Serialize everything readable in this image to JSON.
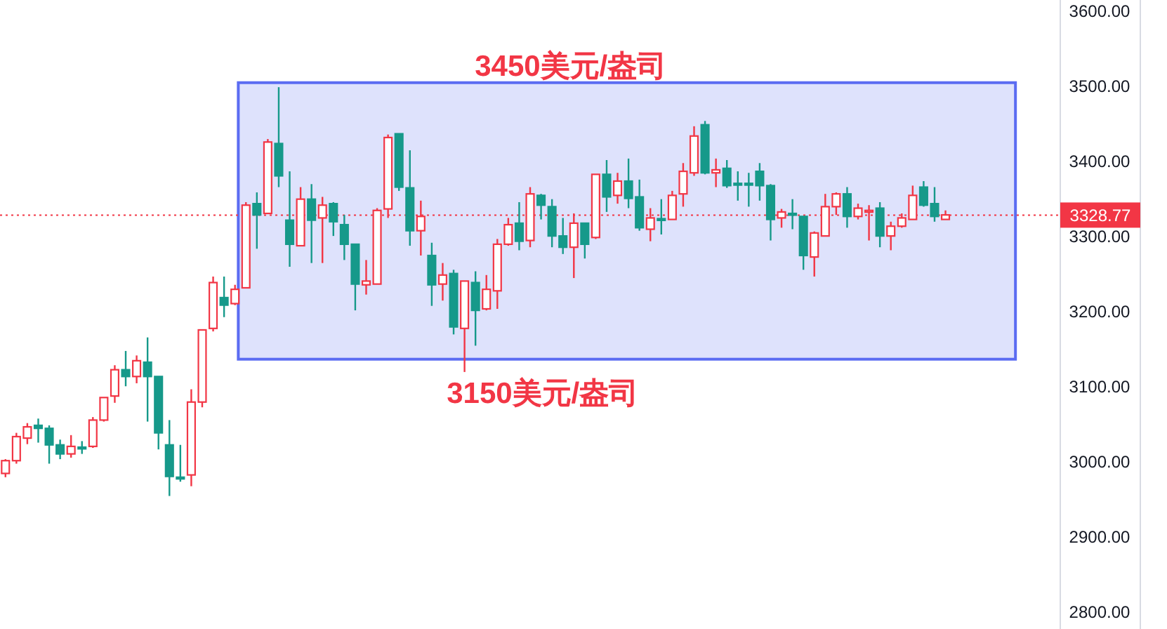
{
  "chart_data": {
    "type": "candlestick",
    "categories": [
      null,
      null,
      null,
      null,
      null,
      null,
      null,
      null,
      null,
      null,
      null,
      null,
      null,
      null,
      null,
      null,
      null,
      null,
      null,
      null,
      null,
      null,
      null,
      null,
      null,
      null,
      null,
      null,
      null,
      null,
      null,
      null,
      null,
      null,
      null,
      null,
      null,
      null,
      null,
      null,
      null,
      null,
      null,
      null,
      null,
      null,
      null,
      null,
      null,
      null,
      null,
      null,
      null,
      null,
      null,
      null,
      null,
      null,
      null,
      null,
      null,
      null,
      null,
      null,
      null,
      null,
      null,
      null,
      null,
      null,
      null,
      null,
      null,
      null,
      null,
      null,
      null,
      null,
      null,
      null,
      null,
      null,
      null,
      null,
      null,
      null,
      null,
      null,
      null,
      null,
      null,
      null,
      null,
      null,
      null,
      null,
      null
    ],
    "ohlc": [
      [
        2985,
        3004,
        2980,
        3002
      ],
      [
        3002,
        3039,
        2998,
        3034
      ],
      [
        3032,
        3052,
        3024,
        3047
      ],
      [
        3049,
        3058,
        3026,
        3045
      ],
      [
        3045,
        3049,
        2998,
        3023
      ],
      [
        3023,
        3030,
        3004,
        3011
      ],
      [
        3011,
        3036,
        3006,
        3021
      ],
      [
        3020,
        3028,
        3011,
        3018
      ],
      [
        3021,
        3060,
        3019,
        3056
      ],
      [
        3056,
        3086,
        3054,
        3086
      ],
      [
        3088,
        3129,
        3079,
        3123
      ],
      [
        3123,
        3148,
        3101,
        3114
      ],
      [
        3114,
        3142,
        3105,
        3135
      ],
      [
        3133,
        3166,
        3054,
        3114
      ],
      [
        3114,
        3114,
        3017,
        3039
      ],
      [
        3023,
        3056,
        2955,
        2981
      ],
      [
        2980,
        3023,
        2974,
        2979
      ],
      [
        2983,
        3097,
        2968,
        3080
      ],
      [
        3080,
        3176,
        3073,
        3176
      ],
      [
        3178,
        3247,
        3174,
        3239
      ],
      [
        3219,
        3247,
        3193,
        3209
      ],
      [
        3211,
        3236,
        3209,
        3230
      ],
      [
        3232,
        3346,
        3232,
        3342
      ],
      [
        3344,
        3359,
        3284,
        3329
      ],
      [
        3331,
        3430,
        3331,
        3426
      ],
      [
        3424,
        3499,
        3366,
        3381
      ],
      [
        3322,
        3387,
        3260,
        3290
      ],
      [
        3288,
        3366,
        3288,
        3350
      ],
      [
        3350,
        3370,
        3265,
        3322
      ],
      [
        3325,
        3353,
        3265,
        3342
      ],
      [
        3344,
        3346,
        3301,
        3320
      ],
      [
        3316,
        3329,
        3269,
        3290
      ],
      [
        3290,
        3290,
        3202,
        3237
      ],
      [
        3236,
        3269,
        3223,
        3241
      ],
      [
        3237,
        3338,
        3237,
        3335
      ],
      [
        3337,
        3436,
        3325,
        3432
      ],
      [
        3437,
        3437,
        3361,
        3366
      ],
      [
        3365,
        3415,
        3288,
        3308
      ],
      [
        3308,
        3348,
        3275,
        3327
      ],
      [
        3275,
        3292,
        3208,
        3236
      ],
      [
        3237,
        3265,
        3215,
        3249
      ],
      [
        3251,
        3256,
        3170,
        3180
      ],
      [
        3178,
        3241,
        3120,
        3241
      ],
      [
        3239,
        3254,
        3155,
        3202
      ],
      [
        3204,
        3249,
        3202,
        3230
      ],
      [
        3228,
        3297,
        3204,
        3290
      ],
      [
        3290,
        3325,
        3288,
        3316
      ],
      [
        3318,
        3346,
        3282,
        3294
      ],
      [
        3295,
        3366,
        3286,
        3357
      ],
      [
        3355,
        3357,
        3323,
        3342
      ],
      [
        3340,
        3350,
        3286,
        3301
      ],
      [
        3301,
        3325,
        3277,
        3286
      ],
      [
        3286,
        3331,
        3245,
        3318
      ],
      [
        3318,
        3318,
        3271,
        3290
      ],
      [
        3299,
        3383,
        3297,
        3383
      ],
      [
        3383,
        3402,
        3333,
        3353
      ],
      [
        3355,
        3385,
        3344,
        3374
      ],
      [
        3374,
        3404,
        3338,
        3351
      ],
      [
        3353,
        3376,
        3308,
        3312
      ],
      [
        3310,
        3338,
        3294,
        3325
      ],
      [
        3324,
        3350,
        3303,
        3322
      ],
      [
        3323,
        3361,
        3323,
        3355
      ],
      [
        3357,
        3398,
        3340,
        3387
      ],
      [
        3385,
        3447,
        3381,
        3434
      ],
      [
        3449,
        3454,
        3383,
        3385
      ],
      [
        3385,
        3404,
        3366,
        3389
      ],
      [
        3391,
        3402,
        3365,
        3368
      ],
      [
        3371,
        3387,
        3348,
        3370
      ],
      [
        3371,
        3385,
        3340,
        3369
      ],
      [
        3387,
        3398,
        3348,
        3368
      ],
      [
        3368,
        3370,
        3295,
        3323
      ],
      [
        3325,
        3337,
        3312,
        3333
      ],
      [
        3331,
        3350,
        3310,
        3329
      ],
      [
        3327,
        3327,
        3256,
        3275
      ],
      [
        3273,
        3307,
        3247,
        3305
      ],
      [
        3301,
        3357,
        3301,
        3340
      ],
      [
        3340,
        3359,
        3329,
        3357
      ],
      [
        3357,
        3366,
        3312,
        3327
      ],
      [
        3327,
        3344,
        3323,
        3338
      ],
      [
        3333,
        3342,
        3295,
        3335
      ],
      [
        3338,
        3346,
        3286,
        3301
      ],
      [
        3301,
        3320,
        3282,
        3314
      ],
      [
        3314,
        3331,
        3312,
        3325
      ],
      [
        3323,
        3368,
        3323,
        3355
      ],
      [
        3366,
        3374,
        3340,
        3342
      ],
      [
        3344,
        3366,
        3320,
        3327
      ],
      [
        3323,
        3335,
        3323,
        3329
      ],
      null,
      null,
      null,
      null,
      null,
      null,
      null,
      null,
      null,
      null
    ],
    "colors": [
      "#f23645",
      "#f23645",
      "#f23645",
      "#16998a",
      "#16998a",
      "#16998a",
      "#f23645",
      "#16998a",
      "#f23645",
      "#f23645",
      "#f23645",
      "#16998a",
      "#f23645",
      "#16998a",
      "#16998a",
      "#16998a",
      "#16998a",
      "#f23645",
      "#f23645",
      "#f23645",
      "#16998a",
      "#f23645",
      "#f23645",
      "#16998a",
      "#f23645",
      "#16998a",
      "#16998a",
      "#f23645",
      "#16998a",
      "#f23645",
      "#16998a",
      "#16998a",
      "#16998a",
      "#f23645",
      "#f23645",
      "#f23645",
      "#16998a",
      "#16998a",
      "#f23645",
      "#16998a",
      "#f23645",
      "#16998a",
      "#f23645",
      "#16998a",
      "#f23645",
      "#f23645",
      "#f23645",
      "#16998a",
      "#f23645",
      "#16998a",
      "#16998a",
      "#16998a",
      "#f23645",
      "#16998a",
      "#f23645",
      "#16998a",
      "#f23645",
      "#16998a",
      "#16998a",
      "#f23645",
      "#16998a",
      "#f23645",
      "#f23645",
      "#f23645",
      "#16998a",
      "#f23645",
      "#16998a",
      "#16998a",
      "#16998a",
      "#16998a",
      "#16998a",
      "#f23645",
      "#16998a",
      "#16998a",
      "#f23645",
      "#f23645",
      "#f23645",
      "#16998a",
      "#f23645",
      "#f23645",
      "#16998a",
      "#f23645",
      "#f23645",
      "#f23645",
      "#16998a",
      "#16998a",
      "#f23645",
      null,
      null,
      null,
      null,
      null,
      null,
      null,
      null,
      null,
      null
    ],
    "ylim": [
      2778,
      3615
    ],
    "yticks": [
      {
        "value": 2800,
        "label": "2800.00"
      },
      {
        "value": 2900,
        "label": "2900.00"
      },
      {
        "value": 3000,
        "label": "3000.00"
      },
      {
        "value": 3100,
        "label": "3100.00"
      },
      {
        "value": 3200,
        "label": "3200.00"
      },
      {
        "value": 3300,
        "label": "3300.00"
      },
      {
        "value": 3400,
        "label": "3400.00"
      },
      {
        "value": 3500,
        "label": "3500.00"
      },
      {
        "value": 3600,
        "label": "3600.00"
      }
    ],
    "ref_lines": [
      {
        "axis": "y",
        "value": 3328.77,
        "label": "3328.77",
        "color": "#f23645",
        "line_style": "dotted"
      }
    ],
    "bands": [
      {
        "axis": "y",
        "from": 3137,
        "to": 3505,
        "color": "#5b6cf2"
      }
    ],
    "annotations": [
      "3450美元/盎司",
      "3150美元/盎司"
    ],
    "tick_labels": "y",
    "grid": false
  }
}
